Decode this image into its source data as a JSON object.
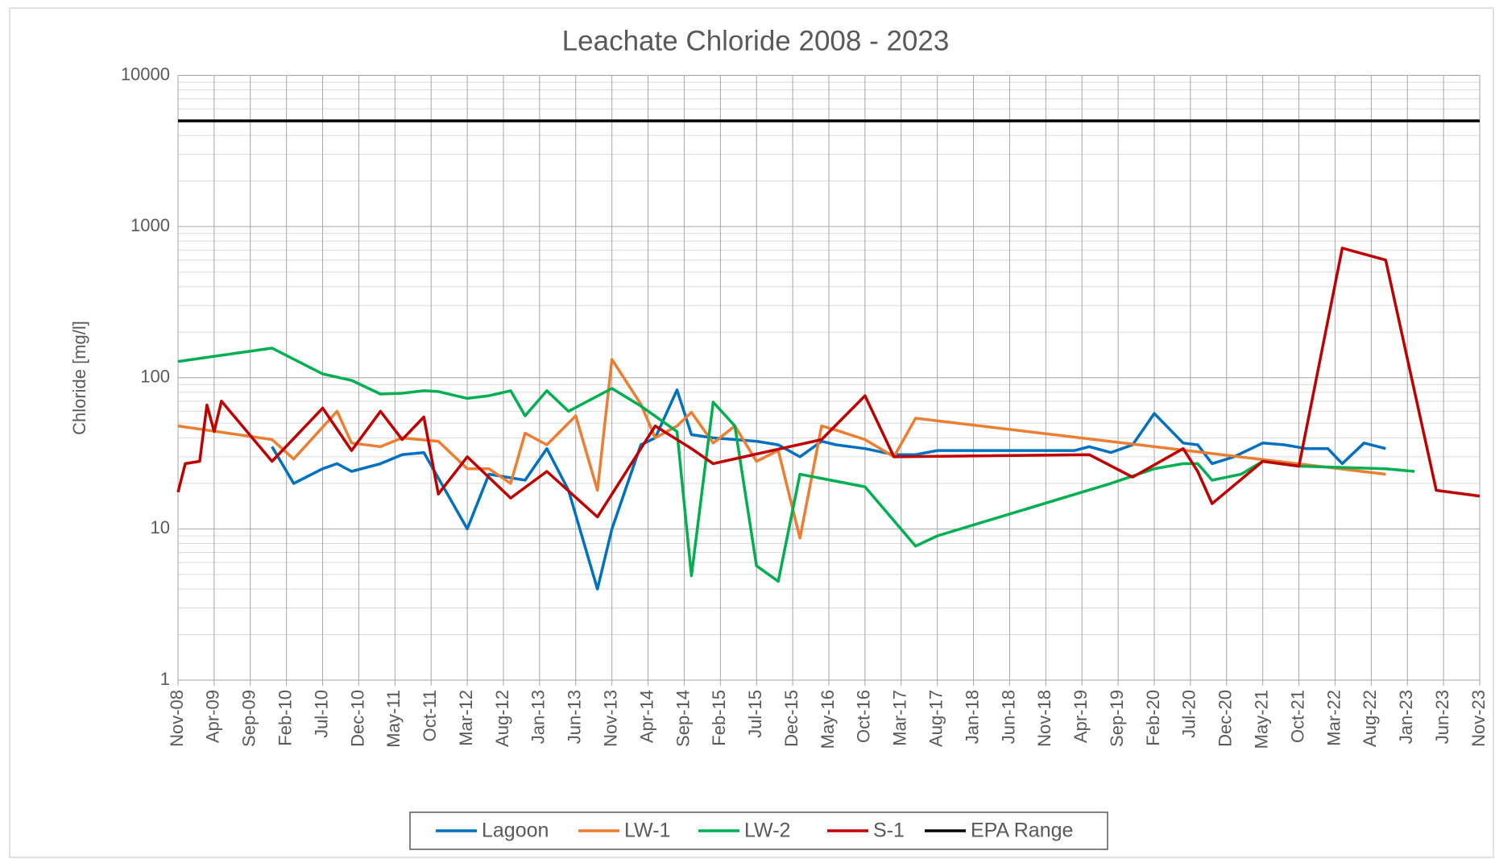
{
  "chart_data": {
    "type": "line",
    "title": "Leachate Chloride 2008 - 2023",
    "y_label": "Chloride [mg/l]",
    "log_scale": true,
    "grid": true,
    "legend": "bottom",
    "ylim": [
      1,
      10000
    ],
    "yticks": [
      1,
      10,
      100,
      1000,
      10000
    ],
    "xlim": [
      "Nov-08",
      "Nov-23"
    ],
    "xticks": [
      "Nov-08",
      "Apr-09",
      "Sep-09",
      "Feb-10",
      "Jul-10",
      "Dec-10",
      "May-11",
      "Oct-11",
      "Mar-12",
      "Aug-12",
      "Jan-13",
      "Jun-13",
      "Nov-13",
      "Apr-14",
      "Sep-14",
      "Feb-15",
      "Jul-15",
      "Dec-15",
      "May-16",
      "Oct-16",
      "Mar-17",
      "Aug-17",
      "Jan-18",
      "Jun-18",
      "Nov-18",
      "Apr-19",
      "Sep-19",
      "Feb-20",
      "Jul-20",
      "Dec-20",
      "May-21",
      "Oct-21",
      "Mar-22",
      "Aug-22",
      "Jan-23",
      "Jun-23",
      "Nov-23"
    ],
    "series": [
      {
        "name": "Lagoon",
        "color": "#0070c0",
        "x": [
          "Dec-09",
          "Mar-10",
          "Jul-10",
          "Sep-10",
          "Nov-10",
          "Mar-11",
          "Jun-11",
          "Sep-11",
          "Mar-12",
          "Jun-12",
          "Nov-12",
          "Feb-13",
          "May-13",
          "Sep-13",
          "Nov-13",
          "Mar-14",
          "May-14",
          "Aug-14",
          "Oct-14",
          "Jan-15",
          "Apr-15",
          "Jul-15",
          "Oct-15",
          "Jan-16",
          "Apr-16",
          "Jun-16",
          "Oct-16",
          "Feb-17",
          "May-17",
          "Aug-17",
          "Mar-19",
          "May-19",
          "Aug-19",
          "Nov-19",
          "Feb-20",
          "Jun-20",
          "Aug-20",
          "Oct-20",
          "Jan-21",
          "May-21",
          "Aug-21",
          "Nov-21",
          "Feb-22",
          "Apr-22",
          "Jul-22",
          "Oct-22"
        ],
        "values": [
          35,
          20,
          25,
          27,
          24,
          27,
          31,
          32,
          10,
          23,
          21,
          34,
          18,
          4,
          10,
          36,
          40,
          83,
          42,
          40,
          39,
          38,
          36,
          30,
          38,
          36,
          34,
          31,
          31,
          33,
          33,
          35,
          32,
          36,
          58,
          37,
          36,
          27,
          30,
          37,
          36,
          34,
          34,
          27,
          37,
          34
        ]
      },
      {
        "name": "LW-1",
        "color": "#ed7d31",
        "x": [
          "Nov-08",
          "Dec-09",
          "Mar-10",
          "Sep-10",
          "Nov-10",
          "Mar-11",
          "Jun-11",
          "Nov-11",
          "Mar-12",
          "Jun-12",
          "Sep-12",
          "Nov-12",
          "Feb-13",
          "Jun-13",
          "Sep-13",
          "Nov-13",
          "Mar-14",
          "May-14",
          "Aug-14",
          "Oct-14",
          "Jan-15",
          "Apr-15",
          "Jul-15",
          "Oct-15",
          "Jan-16",
          "Apr-16",
          "Jun-16",
          "Oct-16",
          "Feb-17",
          "May-17",
          "Oct-22"
        ],
        "values": [
          48,
          39,
          29,
          60,
          37,
          35,
          40,
          38,
          25,
          25,
          20,
          43,
          36,
          56,
          18,
          132,
          67,
          40,
          48,
          59,
          37,
          48,
          28,
          33,
          8.7,
          48,
          45,
          39,
          30,
          54,
          23
        ]
      },
      {
        "name": "LW-2",
        "color": "#00b050",
        "x": [
          "Nov-08",
          "Dec-09",
          "Jul-10",
          "Nov-10",
          "Mar-11",
          "Jun-11",
          "Sep-11",
          "Nov-11",
          "Mar-12",
          "Jun-12",
          "Sep-12",
          "Nov-12",
          "Feb-13",
          "May-13",
          "Nov-13",
          "Mar-14",
          "Aug-14",
          "Oct-14",
          "Jan-15",
          "Apr-15",
          "Jul-15",
          "Oct-15",
          "Jan-16",
          "Oct-16",
          "May-17",
          "Aug-17",
          "Aug-19",
          "Feb-20",
          "Jun-20",
          "Aug-20",
          "Oct-20",
          "Feb-21",
          "May-21",
          "Oct-21",
          "Oct-22",
          "Feb-23"
        ],
        "values": [
          128,
          157,
          106,
          96,
          78,
          79,
          82,
          81,
          73,
          76,
          82,
          56,
          82,
          60,
          85,
          65,
          44,
          4.9,
          69,
          48,
          5.7,
          4.5,
          23,
          19,
          7.7,
          9,
          20,
          25,
          27,
          27,
          21,
          23,
          28,
          26,
          25,
          24
        ]
      },
      {
        "name": "S-1",
        "color": "#c00000",
        "x": [
          "Nov-08",
          "Dec-08",
          "Feb-09",
          "Mar-09",
          "Apr-09",
          "May-09",
          "Dec-09",
          "Jul-10",
          "Nov-10",
          "Mar-11",
          "Jun-11",
          "Sep-11",
          "Nov-11",
          "Mar-12",
          "Sep-12",
          "Feb-13",
          "Sep-13",
          "May-14",
          "Oct-14",
          "Jan-15",
          "Apr-16",
          "Oct-16",
          "Feb-17",
          "May-19",
          "Nov-19",
          "Jun-20",
          "Aug-20",
          "Oct-20",
          "May-21",
          "Oct-21",
          "Apr-22",
          "Oct-22",
          "May-23",
          "Nov-23"
        ],
        "values": [
          17.5,
          27,
          28,
          66,
          44,
          70,
          28,
          63,
          33,
          60,
          39,
          55,
          17,
          30,
          16,
          24,
          12,
          48,
          34,
          27,
          39,
          76,
          30,
          31,
          22,
          34,
          24,
          14.7,
          28,
          26,
          720,
          600,
          18,
          16.5
        ]
      },
      {
        "name": "EPA Range",
        "color": "#000000",
        "x": [
          "Nov-08",
          "Nov-23"
        ],
        "values": [
          5000,
          5000
        ]
      }
    ]
  }
}
